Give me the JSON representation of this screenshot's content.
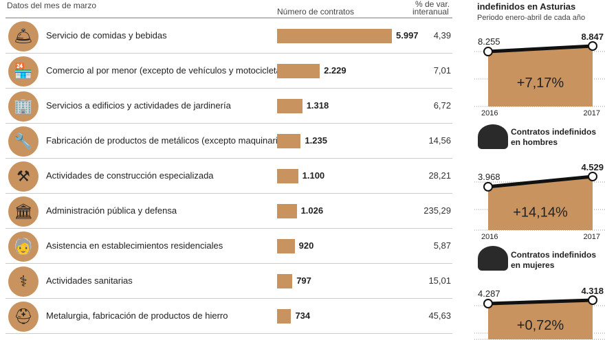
{
  "header": {
    "left": "Datos del mes de marzo",
    "contracts": "Número de contratos",
    "var_top": "% de var.",
    "var_bottom": "interanual"
  },
  "chart_data": [
    {
      "type": "bar",
      "xlabel": "Número de contratos",
      "categories": [
        "Servicio de comidas y bebidas",
        "Comercio al  por menor (excepto de vehículos y motocicletas)",
        "Servicios a edificios y actividades de jardinería",
        "Fabricación de productos de metálicos (excepto maquinaria)",
        "Actividades de construcción especializada",
        "Administración pública y defensa",
        "Asistencia en establecimientos residenciales",
        "Actividades sanitarias",
        "Metalurgia, fabricación de productos de hierro"
      ],
      "values": [
        5997,
        2229,
        1318,
        1235,
        1100,
        1026,
        920,
        797,
        734
      ],
      "value_labels": [
        "5.997",
        "2.229",
        "1.318",
        "1.235",
        "1.100",
        "1.026",
        "920",
        "797",
        "734"
      ],
      "var_labels": [
        "4,39",
        "7,01",
        "6,72",
        "14,56",
        "28,21",
        "235,29",
        "5,87",
        "15,01",
        "45,63"
      ],
      "icons": [
        "cloche-icon",
        "shop-icon",
        "buildings-icon",
        "wrench-icon",
        "tools-icon",
        "government-building-icon",
        "elderly-icon",
        "nurse-icon",
        "welder-icon"
      ],
      "color": "#c8935e"
    },
    {
      "type": "area",
      "title": "indefinidos en Asturias",
      "subtitle": "Periodo enero-abril de cada año",
      "x": [
        "2016",
        "2017"
      ],
      "values": [
        8255,
        8847
      ],
      "value_labels": [
        "8.255",
        "8.847"
      ],
      "change": "+7,17%"
    },
    {
      "type": "area",
      "title": "Contratos indefinidos en hombres",
      "x": [
        "2016",
        "2017"
      ],
      "values": [
        3968,
        4529
      ],
      "value_labels": [
        "3.968",
        "4.529"
      ],
      "change": "+14,14%"
    },
    {
      "type": "area",
      "title": "Contratos indefinidos en mujeres",
      "values": [
        4287,
        4318
      ],
      "value_labels": [
        "4.287",
        "4.318"
      ],
      "change": "+0,72%"
    }
  ]
}
